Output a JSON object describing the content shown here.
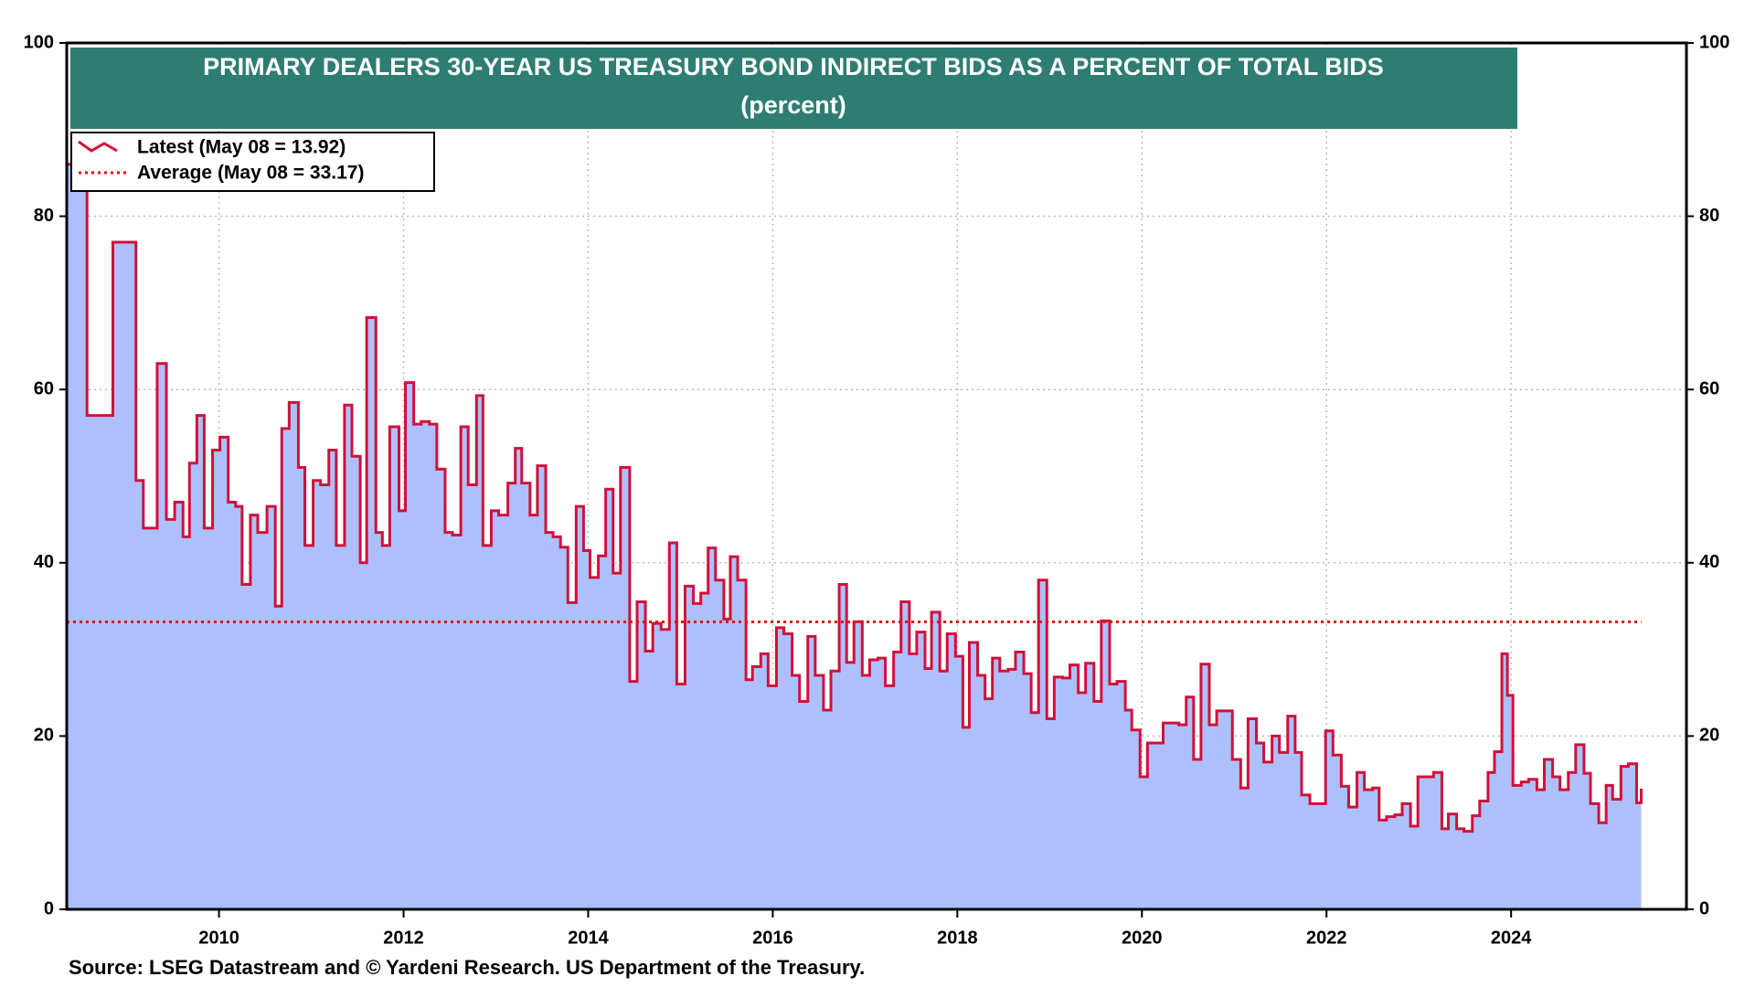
{
  "chart_data": {
    "type": "step-area",
    "title": "PRIMARY DEALERS 30-YEAR US TREASURY BOND INDIRECT BIDS AS A PERCENT OF TOTAL BIDS",
    "subtitle": "(percent)",
    "source": "Source: LSEG Datastream and © Yardeni Research. US Department of the Treasury.",
    "xlim": [
      2008.35,
      2025.9
    ],
    "xticks": [
      2010,
      2012,
      2014,
      2016,
      2018,
      2020,
      2022,
      2024
    ],
    "ylim": [
      0,
      100
    ],
    "yticks": [
      0,
      20,
      40,
      60,
      80,
      100
    ],
    "y2lim": [
      0,
      100
    ],
    "y2ticks": [
      0,
      20,
      40,
      60,
      80,
      100
    ],
    "grid": true,
    "legend": "top-left",
    "series": [
      {
        "name": "Latest (May 08 = 13.92)",
        "color": "#d0103a",
        "fill": "#adc0fc",
        "x": [
          2008.35,
          2008.57,
          2008.85,
          2009.1,
          2009.18,
          2009.33,
          2009.43,
          2009.52,
          2009.61,
          2009.68,
          2009.76,
          2009.84,
          2009.93,
          2010.01,
          2010.1,
          2010.18,
          2010.25,
          2010.34,
          2010.42,
          2010.52,
          2010.61,
          2010.68,
          2010.76,
          2010.86,
          2010.93,
          2011.02,
          2011.1,
          2011.19,
          2011.27,
          2011.36,
          2011.44,
          2011.53,
          2011.6,
          2011.7,
          2011.77,
          2011.85,
          2011.95,
          2012.02,
          2012.11,
          2012.19,
          2012.28,
          2012.36,
          2012.45,
          2012.53,
          2012.62,
          2012.7,
          2012.79,
          2012.86,
          2012.95,
          2013.03,
          2013.13,
          2013.21,
          2013.28,
          2013.37,
          2013.45,
          2013.54,
          2013.62,
          2013.7,
          2013.78,
          2013.87,
          2013.95,
          2014.02,
          2014.11,
          2014.19,
          2014.27,
          2014.35,
          2014.45,
          2014.53,
          2014.62,
          2014.7,
          2014.79,
          2014.88,
          2014.96,
          2015.05,
          2015.14,
          2015.22,
          2015.3,
          2015.38,
          2015.47,
          2015.54,
          2015.62,
          2015.71,
          2015.78,
          2015.87,
          2015.95,
          2016.04,
          2016.12,
          2016.21,
          2016.29,
          2016.38,
          2016.46,
          2016.55,
          2016.63,
          2016.72,
          2016.8,
          2016.88,
          2016.97,
          2017.05,
          2017.14,
          2017.22,
          2017.31,
          2017.39,
          2017.48,
          2017.56,
          2017.65,
          2017.72,
          2017.81,
          2017.89,
          2017.98,
          2018.06,
          2018.13,
          2018.22,
          2018.3,
          2018.38,
          2018.46,
          2018.55,
          2018.63,
          2018.72,
          2018.8,
          2018.88,
          2018.97,
          2019.05,
          2019.14,
          2019.22,
          2019.31,
          2019.39,
          2019.48,
          2019.56,
          2019.65,
          2019.73,
          2019.82,
          2019.89,
          2019.98,
          2020.06,
          2020.15,
          2020.23,
          2020.32,
          2020.4,
          2020.48,
          2020.56,
          2020.64,
          2020.73,
          2020.81,
          2020.9,
          2020.98,
          2021.07,
          2021.15,
          2021.24,
          2021.32,
          2021.41,
          2021.49,
          2021.58,
          2021.66,
          2021.73,
          2021.82,
          2021.9,
          2021.99,
          2022.07,
          2022.16,
          2022.24,
          2022.33,
          2022.41,
          2022.5,
          2022.57,
          2022.65,
          2022.74,
          2022.82,
          2022.91,
          2022.99,
          2023.08,
          2023.16,
          2023.25,
          2023.32,
          2023.41,
          2023.49,
          2023.58,
          2023.66,
          2023.75,
          2023.82,
          2023.9,
          2023.96,
          2024.02,
          2024.11,
          2024.19,
          2024.28,
          2024.36,
          2024.45,
          2024.53,
          2024.62,
          2024.7,
          2024.79,
          2024.86,
          2024.95,
          2025.03,
          2025.1,
          2025.19,
          2025.27,
          2025.36,
          2025.41
        ],
        "values": [
          86,
          57,
          77,
          49.5,
          44,
          63,
          45,
          47,
          43,
          51.5,
          57,
          44,
          53,
          54.5,
          47,
          46.5,
          37.5,
          45.5,
          43.5,
          46.5,
          35,
          55.5,
          58.5,
          51,
          42,
          49.5,
          49,
          53,
          42,
          58.2,
          52.3,
          40,
          68.3,
          43.5,
          42,
          55.7,
          46,
          60.8,
          56,
          56.3,
          56,
          50.8,
          43.5,
          43.2,
          55.7,
          49,
          59.3,
          42,
          46,
          45.5,
          49.2,
          53.2,
          49.2,
          45.5,
          51.2,
          43.5,
          43,
          41.8,
          35.4,
          46.5,
          41.4,
          38.3,
          40.8,
          48.5,
          38.8,
          51,
          26.3,
          35.5,
          29.8,
          33,
          32.3,
          42.3,
          26,
          37.3,
          35.3,
          36.5,
          41.7,
          38,
          33.5,
          40.7,
          38,
          26.5,
          28,
          29.5,
          25.8,
          32.5,
          31.8,
          27,
          24,
          31.5,
          27,
          23,
          27.5,
          37.5,
          28.5,
          33.2,
          27,
          28.8,
          29,
          25.8,
          29.7,
          35.5,
          29.5,
          32,
          27.8,
          34.3,
          27.5,
          31.8,
          29.2,
          21,
          30.8,
          27,
          24.3,
          29,
          27.5,
          27.7,
          29.7,
          27.2,
          22.7,
          38,
          22,
          26.8,
          26.7,
          28.2,
          25,
          28.4,
          24,
          33.3,
          26,
          26.3,
          23,
          20.7,
          15.3,
          19.2,
          19.2,
          21.5,
          21.5,
          21.3,
          24.5,
          17.3,
          28.3,
          21.3,
          22.9,
          22.9,
          17.3,
          14,
          22,
          19.2,
          17,
          20,
          18.1,
          22.3,
          18.1,
          13.2,
          12.2,
          12.2,
          20.6,
          17.8,
          14.2,
          11.8,
          15.8,
          13.8,
          14,
          10.3,
          10.7,
          10.9,
          12.2,
          9.6,
          15.3,
          15.3,
          15.8,
          9.3,
          11,
          9.3,
          9,
          10.8,
          12.5,
          15.8,
          18.2,
          29.5,
          24.7,
          14.3,
          14.7,
          15,
          13.8,
          17.3,
          15.3,
          13.8,
          15.8,
          19,
          15.7,
          12.2,
          10,
          14.3,
          12.7,
          16.5,
          16.8,
          12.3,
          13.92
        ]
      },
      {
        "name": "Average (May 08 = 33.17)",
        "color": "#e01010",
        "style": "dotted",
        "value": 33.17
      }
    ]
  }
}
